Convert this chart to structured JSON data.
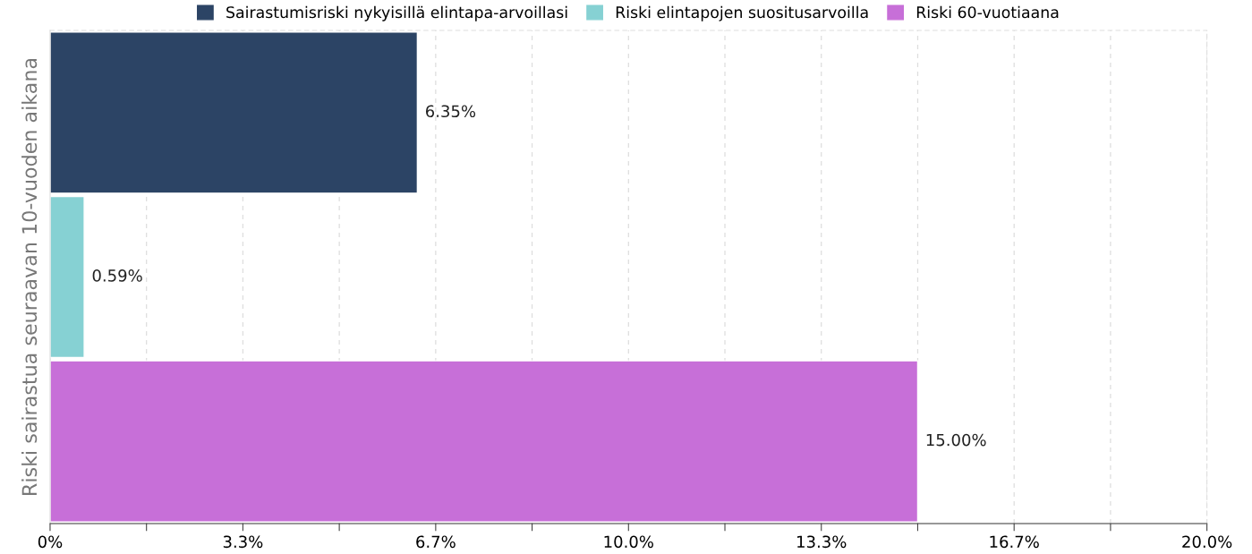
{
  "chart_data": {
    "type": "bar",
    "orientation": "horizontal",
    "ylabel": "Riski sairastua seuraavan 10-vuoden aikana",
    "categories": [
      null
    ],
    "series": [
      {
        "name": "Sairastumisriski nykyisillä elintapa-arvoillasi",
        "color": "#2c4465",
        "values": [
          6.35
        ],
        "value_labels": [
          "6.35%"
        ]
      },
      {
        "name": "Riski elintapojen suositusarvoilla",
        "color": "#86d1d3",
        "values": [
          0.59
        ],
        "value_labels": [
          "0.59%"
        ]
      },
      {
        "name": "Riski 60-vuotiaana",
        "color": "#c76fd8",
        "values": [
          15.0
        ],
        "value_labels": [
          "15.00%"
        ]
      }
    ],
    "xlim": [
      0,
      20
    ],
    "xticks": [
      {
        "value": 0,
        "label": "0%"
      },
      {
        "value": 1.6667,
        "label": null
      },
      {
        "value": 3.3333,
        "label": "3.3%"
      },
      {
        "value": 5,
        "label": null
      },
      {
        "value": 6.6667,
        "label": "6.7%"
      },
      {
        "value": 8.3333,
        "label": null
      },
      {
        "value": 10,
        "label": "10.0%"
      },
      {
        "value": 11.6667,
        "label": null
      },
      {
        "value": 13.3333,
        "label": "13.3%"
      },
      {
        "value": 15,
        "label": null
      },
      {
        "value": 16.6667,
        "label": "16.7%"
      },
      {
        "value": 18.3333,
        "label": null
      },
      {
        "value": 20,
        "label": "20.0%"
      }
    ],
    "grid": "x",
    "legend": "top"
  }
}
